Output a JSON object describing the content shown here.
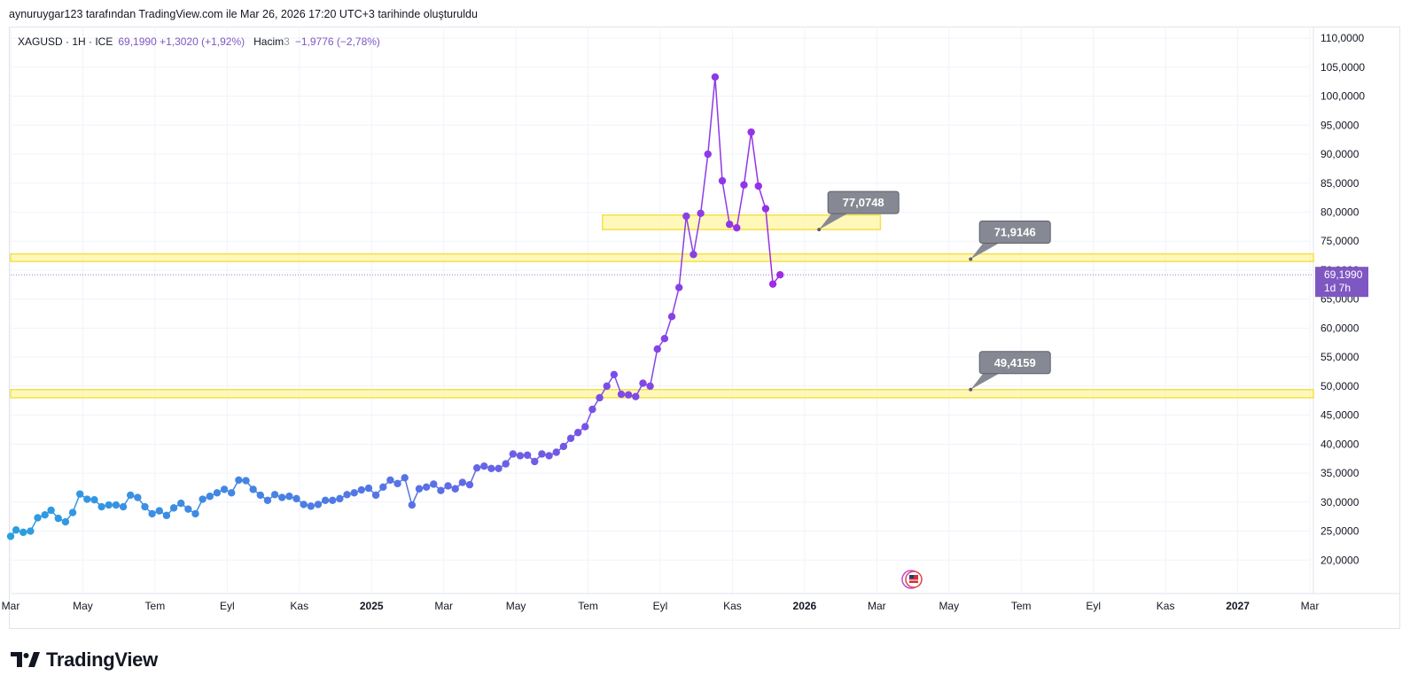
{
  "header": {
    "attribution": "aynuruygar123 tarafından TradingView.com ile Mar 26, 2026 17:20 UTC+3 tarihinde oluşturuldu"
  },
  "legend": {
    "symbol": "XAGUSD · 1H · ICE",
    "values": "69,1990  +1,3020 (+1,92%)",
    "volume_label": "Hacim",
    "volume_suffix": "3",
    "volume_values": "−1,9776 (−2,78%)"
  },
  "brand": {
    "name": "TradingView"
  },
  "colors": {
    "line_start": "#2a9fe0",
    "line_mid": "#5b6fe6",
    "line_end": "#9b2de6",
    "zone_fill": "#fff59d",
    "zone_stroke": "#f4e04a",
    "callout_bg": "#868993",
    "last_price_bg": "#7e57c2"
  },
  "chart_data": {
    "type": "line",
    "title": "",
    "xlabel": "",
    "ylabel": "",
    "ylim": [
      15000,
      112000
    ],
    "y_ticks": [
      {
        "v": 110000,
        "label": "110,0000"
      },
      {
        "v": 105000,
        "label": "105,0000"
      },
      {
        "v": 100000,
        "label": "100,0000"
      },
      {
        "v": 95000,
        "label": "95,0000"
      },
      {
        "v": 90000,
        "label": "90,0000"
      },
      {
        "v": 85000,
        "label": "85,0000"
      },
      {
        "v": 80000,
        "label": "80,0000"
      },
      {
        "v": 75000,
        "label": "75,0000"
      },
      {
        "v": 70000,
        "label": "70,0000"
      },
      {
        "v": 65000,
        "label": "65,0000"
      },
      {
        "v": 60000,
        "label": "60,0000"
      },
      {
        "v": 55000,
        "label": "55,0000"
      },
      {
        "v": 50000,
        "label": "50,0000"
      },
      {
        "v": 45000,
        "label": "45,0000"
      },
      {
        "v": 40000,
        "label": "40,0000"
      },
      {
        "v": 35000,
        "label": "35,0000"
      },
      {
        "v": 30000,
        "label": "30,0000"
      },
      {
        "v": 25000,
        "label": "25,0000"
      },
      {
        "v": 20000,
        "label": "20,0000"
      }
    ],
    "x_ticks": [
      {
        "t": 0,
        "label": "Mar",
        "bold": false
      },
      {
        "t": 2,
        "label": "May",
        "bold": false
      },
      {
        "t": 4,
        "label": "Tem",
        "bold": false
      },
      {
        "t": 6,
        "label": "Eyl",
        "bold": false
      },
      {
        "t": 8,
        "label": "Kas",
        "bold": false
      },
      {
        "t": 10,
        "label": "2025",
        "bold": true
      },
      {
        "t": 12,
        "label": "Mar",
        "bold": false
      },
      {
        "t": 14,
        "label": "May",
        "bold": false
      },
      {
        "t": 16,
        "label": "Tem",
        "bold": false
      },
      {
        "t": 18,
        "label": "Eyl",
        "bold": false
      },
      {
        "t": 20,
        "label": "Kas",
        "bold": false
      },
      {
        "t": 22,
        "label": "2026",
        "bold": true
      },
      {
        "t": 24,
        "label": "Mar",
        "bold": false
      },
      {
        "t": 26,
        "label": "May",
        "bold": false
      },
      {
        "t": 28,
        "label": "Tem",
        "bold": false
      },
      {
        "t": 30,
        "label": "Eyl",
        "bold": false
      },
      {
        "t": 32,
        "label": "Kas",
        "bold": false
      },
      {
        "t": 34,
        "label": "2027",
        "bold": true
      },
      {
        "t": 36,
        "label": "Mar",
        "bold": false
      }
    ],
    "x_range": [
      0,
      36
    ],
    "series": [
      {
        "points": [
          [
            0.0,
            24100
          ],
          [
            0.15,
            25200
          ],
          [
            0.35,
            24800
          ],
          [
            0.55,
            25000
          ],
          [
            0.75,
            27300
          ],
          [
            0.95,
            27800
          ],
          [
            1.12,
            28600
          ],
          [
            1.32,
            27200
          ],
          [
            1.52,
            26600
          ],
          [
            1.72,
            28200
          ],
          [
            1.92,
            31400
          ],
          [
            2.12,
            30500
          ],
          [
            2.32,
            30400
          ],
          [
            2.52,
            29200
          ],
          [
            2.72,
            29500
          ],
          [
            2.92,
            29500
          ],
          [
            3.12,
            29200
          ],
          [
            3.32,
            31200
          ],
          [
            3.52,
            30800
          ],
          [
            3.72,
            29200
          ],
          [
            3.92,
            28000
          ],
          [
            4.12,
            28500
          ],
          [
            4.32,
            27700
          ],
          [
            4.52,
            29000
          ],
          [
            4.72,
            29800
          ],
          [
            4.92,
            28800
          ],
          [
            5.12,
            28000
          ],
          [
            5.32,
            30500
          ],
          [
            5.52,
            31000
          ],
          [
            5.72,
            31600
          ],
          [
            5.92,
            32200
          ],
          [
            6.12,
            31600
          ],
          [
            6.32,
            33800
          ],
          [
            6.52,
            33700
          ],
          [
            6.72,
            32200
          ],
          [
            6.92,
            31200
          ],
          [
            7.12,
            30300
          ],
          [
            7.32,
            31300
          ],
          [
            7.52,
            30800
          ],
          [
            7.72,
            31000
          ],
          [
            7.92,
            30600
          ],
          [
            8.12,
            29600
          ],
          [
            8.32,
            29300
          ],
          [
            8.52,
            29600
          ],
          [
            8.72,
            30300
          ],
          [
            8.92,
            30300
          ],
          [
            9.12,
            30600
          ],
          [
            9.32,
            31300
          ],
          [
            9.52,
            31600
          ],
          [
            9.72,
            32100
          ],
          [
            9.92,
            32400
          ],
          [
            10.12,
            31200
          ],
          [
            10.32,
            32600
          ],
          [
            10.52,
            33800
          ],
          [
            10.72,
            33200
          ],
          [
            10.92,
            34200
          ],
          [
            11.12,
            29500
          ],
          [
            11.32,
            32300
          ],
          [
            11.52,
            32600
          ],
          [
            11.72,
            33100
          ],
          [
            11.92,
            32000
          ],
          [
            12.12,
            32800
          ],
          [
            12.32,
            32300
          ],
          [
            12.52,
            33400
          ],
          [
            12.72,
            33000
          ],
          [
            12.92,
            35900
          ],
          [
            13.12,
            36200
          ],
          [
            13.32,
            35800
          ],
          [
            13.52,
            35800
          ],
          [
            13.72,
            36600
          ],
          [
            13.92,
            38300
          ],
          [
            14.12,
            38000
          ],
          [
            14.32,
            38100
          ],
          [
            14.52,
            37000
          ],
          [
            14.72,
            38300
          ],
          [
            14.92,
            38000
          ],
          [
            15.12,
            38600
          ],
          [
            15.32,
            39600
          ],
          [
            15.52,
            41000
          ],
          [
            15.72,
            42000
          ],
          [
            15.92,
            43000
          ],
          [
            16.12,
            46000
          ],
          [
            16.32,
            48000
          ],
          [
            16.52,
            50000
          ],
          [
            16.72,
            52000
          ],
          [
            16.92,
            48600
          ],
          [
            17.12,
            48500
          ],
          [
            17.32,
            48200
          ],
          [
            17.52,
            50500
          ],
          [
            17.72,
            50000
          ],
          [
            17.92,
            56400
          ],
          [
            18.12,
            58200
          ],
          [
            18.32,
            62000
          ],
          [
            18.52,
            67000
          ],
          [
            18.72,
            79300
          ],
          [
            18.92,
            72700
          ],
          [
            19.12,
            79800
          ],
          [
            19.32,
            90000
          ],
          [
            19.52,
            103300
          ],
          [
            19.72,
            85400
          ],
          [
            19.92,
            77900
          ],
          [
            20.12,
            77300
          ],
          [
            20.32,
            84700
          ],
          [
            20.52,
            93800
          ],
          [
            20.72,
            84500
          ],
          [
            20.92,
            80600
          ],
          [
            21.12,
            67600
          ],
          [
            21.32,
            69199
          ]
        ]
      }
    ],
    "zones": [
      {
        "y_low": 77000,
        "y_high": 79500,
        "t_start": 16.4,
        "t_end": 24.1
      },
      {
        "y_low": 71500,
        "y_high": 72800,
        "t_start": 0,
        "t_end": 36.5
      },
      {
        "y_low": 48000,
        "y_high": 49400,
        "t_start": 0,
        "t_end": 36.5
      }
    ],
    "callouts": [
      {
        "label": "77,0748",
        "value": 77000,
        "t": 22.4
      },
      {
        "label": "71,9146",
        "value": 71900,
        "t": 26.6
      },
      {
        "label": "49,4159",
        "value": 49400,
        "t": 26.6
      }
    ],
    "last_price": {
      "value": 69199,
      "label": "69,1990",
      "countdown": "1d 7h"
    }
  }
}
